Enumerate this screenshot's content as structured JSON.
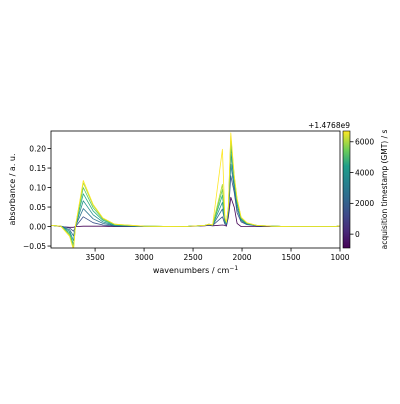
{
  "chart_data": {
    "type": "line",
    "title": "",
    "xlabel": "wavenumbers / cm",
    "xlabel_exp": "−1",
    "ylabel": "absorbance / a. u.",
    "xlim": [
      3950,
      1000
    ],
    "ylim": [
      -0.055,
      0.245
    ],
    "x_ticks": [
      3500,
      3000,
      2500,
      2000,
      1500,
      1000
    ],
    "y_ticks": [
      -0.05,
      0.0,
      0.05,
      0.1,
      0.15,
      0.2
    ],
    "y_tick_labels": [
      "−0.05",
      "0.00",
      "0.05",
      "0.10",
      "0.15",
      "0.20"
    ],
    "grid": false,
    "colormap": "viridis",
    "colorbar": {
      "label": "acquisition timestamp (GMT) / s",
      "offset_label": "+1.4768e9",
      "ticks": [
        0,
        2000,
        4000,
        6000
      ],
      "tick_labels": [
        "0",
        "2000",
        "4000",
        "6000"
      ],
      "range": [
        -900,
        6700
      ]
    },
    "series": [
      {
        "t": -900,
        "color": "#440154",
        "values": [
          0.003,
          0.0,
          -0.002,
          -0.002,
          0.0,
          0.001,
          0.001,
          0.001,
          0.0,
          0.0,
          0.0,
          0.002,
          0.003,
          0.002,
          0.004,
          0.003,
          0.001,
          0.023,
          0.075,
          0.05,
          0.008,
          0.0,
          0.0,
          0.0,
          0.0,
          0.0,
          0.0,
          0.0,
          0.0,
          0.0,
          0.001
        ]
      },
      {
        "t": 300,
        "color": "#3b528b",
        "values": [
          0.003,
          0.001,
          -0.004,
          -0.012,
          0.0,
          0.025,
          0.01,
          0.004,
          0.001,
          0.0,
          0.0,
          0.003,
          0.004,
          0.003,
          0.025,
          0.006,
          0.004,
          0.028,
          0.13,
          0.088,
          0.035,
          0.012,
          0.005,
          0.002,
          0.001,
          0.0,
          0.0,
          0.0,
          0.0,
          0.0,
          0.002
        ]
      },
      {
        "t": 1200,
        "color": "#2c728e",
        "values": [
          0.003,
          0.001,
          -0.008,
          -0.024,
          0.001,
          0.046,
          0.02,
          0.008,
          0.002,
          0.0,
          0.0,
          0.003,
          0.005,
          0.003,
          0.045,
          0.01,
          0.006,
          0.035,
          0.16,
          0.098,
          0.046,
          0.015,
          0.006,
          0.002,
          0.001,
          0.0,
          0.0,
          0.0,
          0.0,
          0.0,
          0.002
        ]
      },
      {
        "t": 2200,
        "color": "#21918c",
        "values": [
          0.003,
          0.001,
          -0.012,
          -0.036,
          0.001,
          0.066,
          0.03,
          0.012,
          0.003,
          0.001,
          0.0,
          0.003,
          0.005,
          0.004,
          0.062,
          0.014,
          0.008,
          0.04,
          0.185,
          0.108,
          0.056,
          0.018,
          0.007,
          0.003,
          0.001,
          0.0,
          0.0,
          0.0,
          0.0,
          0.0,
          0.002
        ]
      },
      {
        "t": 3400,
        "color": "#28ae80",
        "values": [
          0.003,
          0.001,
          -0.016,
          -0.046,
          0.002,
          0.084,
          0.04,
          0.016,
          0.004,
          0.001,
          0.0,
          0.003,
          0.006,
          0.004,
          0.08,
          0.017,
          0.009,
          0.044,
          0.205,
          0.118,
          0.062,
          0.02,
          0.008,
          0.003,
          0.001,
          0.0,
          0.0,
          0.0,
          0.0,
          0.0,
          0.002
        ]
      },
      {
        "t": 4600,
        "color": "#5ec962",
        "values": [
          0.003,
          0.001,
          -0.02,
          -0.054,
          0.002,
          0.1,
          0.048,
          0.019,
          0.005,
          0.001,
          0.0,
          0.003,
          0.006,
          0.004,
          0.095,
          0.02,
          0.01,
          0.046,
          0.22,
          0.126,
          0.067,
          0.022,
          0.009,
          0.003,
          0.001,
          0.0,
          0.0,
          0.0,
          0.0,
          0.0,
          0.002
        ]
      },
      {
        "t": 5800,
        "color": "#addc30",
        "values": [
          0.003,
          0.001,
          -0.023,
          -0.058,
          0.002,
          0.112,
          0.054,
          0.021,
          0.006,
          0.001,
          0.0,
          0.003,
          0.006,
          0.004,
          0.108,
          0.022,
          0.011,
          0.048,
          0.232,
          0.13,
          0.07,
          0.023,
          0.009,
          0.003,
          0.001,
          0.0,
          0.0,
          0.0,
          0.0,
          0.0,
          0.002
        ]
      },
      {
        "t": 6700,
        "color": "#fde725",
        "values": [
          0.003,
          0.001,
          -0.025,
          -0.06,
          0.002,
          0.118,
          0.057,
          0.022,
          0.006,
          0.001,
          0.0,
          0.003,
          0.006,
          0.004,
          0.198,
          0.024,
          0.012,
          0.05,
          0.24,
          0.132,
          0.072,
          0.024,
          0.01,
          0.003,
          0.001,
          0.0,
          0.0,
          0.0,
          0.0,
          0.0,
          0.002
        ]
      }
    ],
    "x": [
      3950,
      3850,
      3760,
      3720,
      3700,
      3620,
      3520,
      3420,
      3300,
      3000,
      2600,
      2380,
      2340,
      2300,
      2200,
      2175,
      2160,
      2140,
      2115,
      2080,
      2050,
      2010,
      1950,
      1850,
      1700,
      1500,
      1300,
      1200,
      1100,
      1050,
      1000
    ]
  }
}
